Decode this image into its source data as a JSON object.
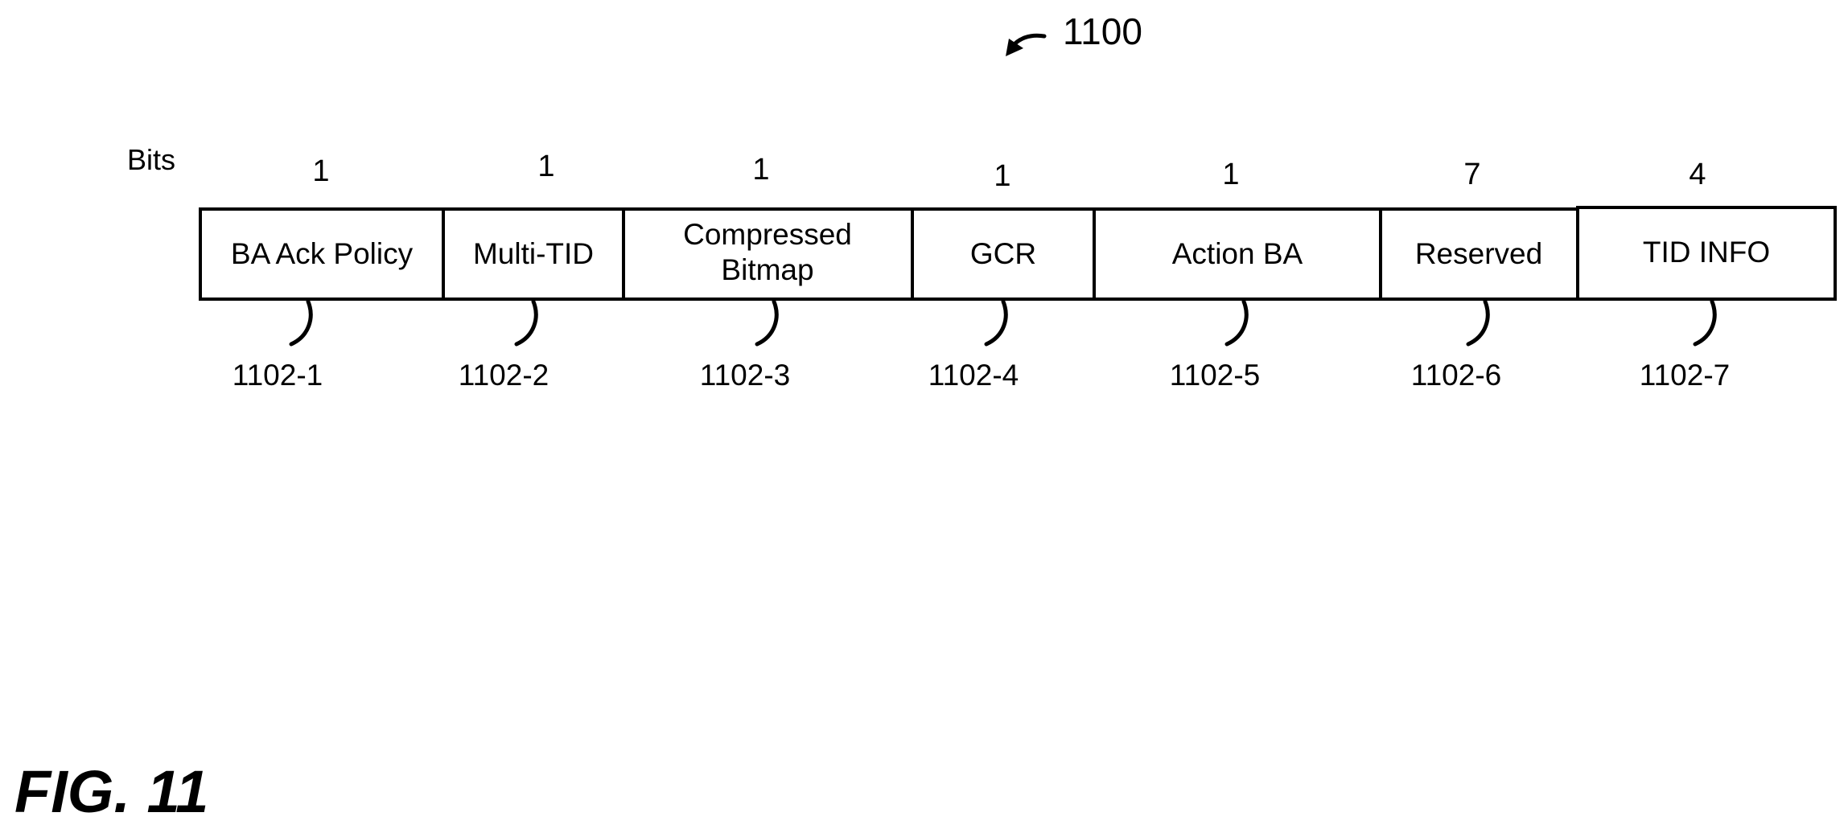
{
  "figure_ref": "1100",
  "bits_label": "Bits",
  "fields": [
    {
      "bits": "1",
      "label": "BA Ack Policy",
      "ref": "1102-1"
    },
    {
      "bits": "1",
      "label": "Multi-TID",
      "ref": "1102-2"
    },
    {
      "bits": "1",
      "label": "Compressed\nBitmap",
      "ref": "1102-3"
    },
    {
      "bits": "1",
      "label": "GCR",
      "ref": "1102-4"
    },
    {
      "bits": "1",
      "label": "Action BA",
      "ref": "1102-5"
    },
    {
      "bits": "7",
      "label": "Reserved",
      "ref": "1102-6"
    },
    {
      "bits": "4",
      "label": "TID INFO",
      "ref": "1102-7"
    }
  ],
  "figure_label": "FIG. 11"
}
